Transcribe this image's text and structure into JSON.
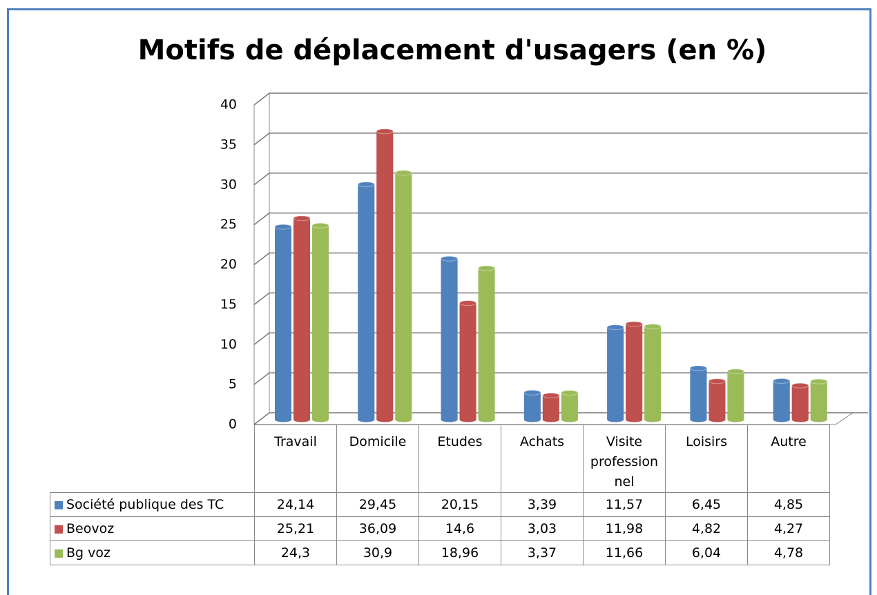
{
  "chart_data": {
    "type": "bar3d",
    "title": "Motifs de déplacement d'usagers (en %)",
    "categories": [
      "Travail",
      "Domicile",
      "Etudes",
      "Achats",
      "Visite professionnel",
      "Loisirs",
      "Autre"
    ],
    "series": [
      {
        "name": "Société publique des TC",
        "color": "#4f81bd",
        "values": [
          24.14,
          29.45,
          20.15,
          3.39,
          11.57,
          6.45,
          4.85
        ],
        "value_labels": [
          "24,14",
          "29,45",
          "20,15",
          "3,39",
          "11,57",
          "6,45",
          "4,85"
        ]
      },
      {
        "name": "Beovoz",
        "color": "#c0504d",
        "values": [
          25.21,
          36.09,
          14.6,
          3.03,
          11.98,
          4.82,
          4.27
        ],
        "value_labels": [
          "25,21",
          "36,09",
          "14,6",
          "3,03",
          "11,98",
          "4,82",
          "4,27"
        ]
      },
      {
        "name": "Bg voz",
        "color": "#9bbb59",
        "values": [
          24.3,
          30.9,
          18.96,
          3.37,
          11.66,
          6.04,
          4.78
        ],
        "value_labels": [
          "24,3",
          "30,9",
          "18,96",
          "3,37",
          "11,66",
          "6,04",
          "4,78"
        ]
      }
    ],
    "ylim": [
      0,
      40
    ],
    "yticks": [
      0,
      5,
      10,
      15,
      20,
      25,
      30,
      35,
      40
    ],
    "grid": true,
    "data_table": true
  }
}
